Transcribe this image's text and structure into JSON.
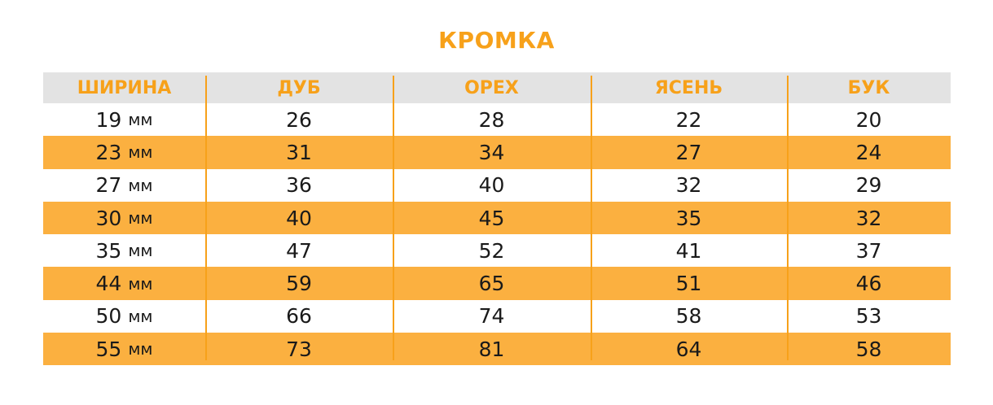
{
  "title": "КРОМКА",
  "header": [
    "ШИРИНА",
    "ДУБ",
    "ОРЕХ",
    "ЯСЕНЬ",
    "БУК"
  ],
  "unit": "мм",
  "rows": [
    {
      "width": "19",
      "values": [
        "26",
        "28",
        "22",
        "20"
      ]
    },
    {
      "width": "23",
      "values": [
        "31",
        "34",
        "27",
        "24"
      ]
    },
    {
      "width": "27",
      "values": [
        "36",
        "40",
        "32",
        "29"
      ]
    },
    {
      "width": "30",
      "values": [
        "40",
        "45",
        "35",
        "32"
      ]
    },
    {
      "width": "35",
      "values": [
        "47",
        "52",
        "41",
        "37"
      ]
    },
    {
      "width": "44",
      "values": [
        "59",
        "65",
        "51",
        "46"
      ]
    },
    {
      "width": "50",
      "values": [
        "66",
        "74",
        "58",
        "53"
      ]
    },
    {
      "width": "55",
      "values": [
        "73",
        "81",
        "64",
        "58"
      ]
    }
  ],
  "colors": {
    "accent": "#f7a11a",
    "stripe": "#fbb040",
    "header_bg": "#e3e3e3",
    "text": "#1a1a1a"
  }
}
